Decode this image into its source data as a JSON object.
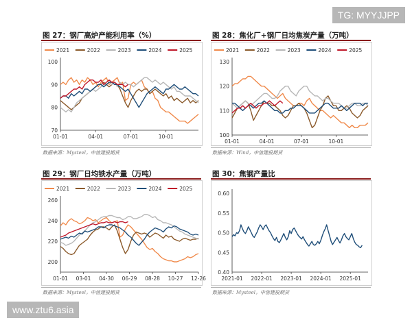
{
  "watermarks": {
    "top": "TG: MYYJJPP",
    "bottom": "www.ztu6.asia"
  },
  "panels": [
    {
      "title": "图 27：钢厂高炉产能利用率（%）",
      "source": "数据来源：Mysteel，中信建投期货"
    },
    {
      "title": "图 28：焦化厂+钢厂日均焦炭产量（万吨）",
      "source": "数据来源：Wind，中信建投期货"
    },
    {
      "title": "图 29：钢厂日均铁水产量（万吨）",
      "source": "数据来源：Mysteel，中信建投期货"
    },
    {
      "title": "图 30：焦钢产量比",
      "source": "数据来源：Mysteel，中信建投期货"
    }
  ],
  "colors": {
    "2021": "#f08a4b",
    "2022": "#8b5a2b",
    "2023": "#b7b7b7",
    "2024": "#1f4e79",
    "2025": "#c0182a",
    "ratio": "#1f4e79"
  },
  "chart_data": [
    {
      "type": "line",
      "ylim": [
        70,
        100
      ],
      "yticks": [
        70,
        80,
        90,
        100
      ],
      "xticks": [
        "01-01",
        "04-01",
        "07-01",
        "10-01"
      ],
      "xtick_pos": [
        0,
        13,
        26,
        39
      ],
      "npts": 52,
      "legend_placement": "top",
      "series": [
        {
          "name": "2021",
          "values": [
            90,
            91,
            90,
            92,
            93,
            91,
            92,
            90,
            92,
            91,
            93,
            92,
            90,
            91,
            89,
            91,
            92,
            93,
            90,
            91,
            92,
            93,
            90,
            91,
            83,
            84,
            90,
            91,
            90,
            91,
            92,
            89,
            88,
            86,
            87,
            84,
            83,
            80,
            79,
            78,
            78,
            77,
            76,
            75,
            74,
            74,
            74,
            73,
            74,
            75,
            76,
            77
          ]
        },
        {
          "name": "2022",
          "values": [
            83,
            82,
            81,
            80,
            79,
            80,
            81,
            82,
            84,
            85,
            86,
            87,
            88,
            89,
            90,
            90,
            91,
            90,
            89,
            90,
            91,
            90,
            88,
            85,
            82,
            80,
            83,
            85,
            87,
            88,
            87,
            88,
            88,
            86,
            87,
            88,
            87,
            86,
            85,
            86,
            84,
            85,
            83,
            84,
            83,
            82,
            83,
            84,
            82,
            83,
            82,
            83
          ]
        },
        {
          "name": "2023",
          "values": [
            80,
            79,
            78,
            79,
            78,
            80,
            82,
            83,
            84,
            85,
            86,
            87,
            88,
            87,
            88,
            89,
            90,
            90,
            91,
            90,
            91,
            89,
            91,
            90,
            91,
            90,
            90,
            89,
            90,
            91,
            92,
            93,
            93,
            92,
            91,
            92,
            91,
            90,
            91,
            90,
            89,
            88,
            89,
            87,
            87,
            86,
            85,
            85,
            85,
            84,
            83,
            82
          ]
        },
        {
          "name": "2024",
          "values": [
            84,
            85,
            85,
            84,
            86,
            85,
            86,
            87,
            86,
            88,
            88,
            87,
            88,
            89,
            90,
            90,
            89,
            90,
            91,
            91,
            90,
            90,
            89,
            88,
            87,
            88,
            86,
            84,
            82,
            80,
            82,
            84,
            86,
            87,
            88,
            89,
            88,
            87,
            86,
            88,
            88,
            89,
            90,
            89,
            88,
            88,
            89,
            88,
            87,
            86,
            86,
            85
          ]
        },
        {
          "name": "2025",
          "values": [
            84,
            85,
            85,
            86,
            87,
            88,
            88,
            89,
            88,
            90,
            91,
            92,
            92,
            91,
            91,
            92,
            90,
            91,
            92,
            91,
            91,
            90,
            90,
            90,
            89,
            90
          ]
        }
      ]
    },
    {
      "type": "line",
      "ylim": [
        100,
        130
      ],
      "yticks": [
        100,
        110,
        120,
        130
      ],
      "xticks": [
        "01-01",
        "04-01",
        "07-01",
        "10-01"
      ],
      "xtick_pos": [
        0,
        13,
        26,
        39
      ],
      "npts": 52,
      "legend_placement": "top",
      "series": [
        {
          "name": "2021",
          "values": [
            120,
            121,
            121,
            122,
            123,
            123,
            124,
            124,
            123,
            122,
            121,
            120,
            120,
            119,
            118,
            117,
            116,
            115,
            116,
            117,
            115,
            114,
            113,
            112,
            112,
            113,
            113,
            112,
            114,
            115,
            113,
            112,
            111,
            110,
            110,
            109,
            108,
            107,
            108,
            107,
            106,
            105,
            105,
            104,
            103,
            104,
            103,
            103,
            104,
            104,
            104,
            105
          ]
        },
        {
          "name": "2022",
          "values": [
            107,
            109,
            111,
            112,
            113,
            114,
            113,
            110,
            106,
            108,
            110,
            112,
            114,
            113,
            113,
            112,
            112,
            111,
            110,
            108,
            107,
            108,
            110,
            112,
            112,
            113,
            112,
            111,
            109,
            106,
            103,
            104,
            107,
            110,
            112,
            115,
            116,
            114,
            112,
            112,
            110,
            110,
            111,
            112,
            111,
            109,
            108,
            107,
            108,
            110,
            111,
            112
          ]
        },
        {
          "name": "2023",
          "values": [
            113,
            112,
            111,
            112,
            113,
            114,
            113,
            112,
            113,
            114,
            115,
            116,
            117,
            117,
            116,
            115,
            115,
            116,
            118,
            119,
            120,
            120,
            118,
            117,
            116,
            118,
            119,
            120,
            120,
            118,
            117,
            116,
            116,
            115,
            114,
            115,
            115,
            114,
            113,
            113,
            113,
            112,
            111,
            111,
            112,
            113,
            113,
            112,
            112,
            113,
            113,
            112
          ]
        },
        {
          "name": "2024",
          "values": [
            113,
            113,
            112,
            111,
            110,
            111,
            112,
            112,
            111,
            112,
            113,
            113,
            114,
            113,
            112,
            111,
            110,
            110,
            109,
            109,
            110,
            110,
            111,
            111,
            112,
            112,
            112,
            111,
            110,
            109,
            109,
            109,
            110,
            111,
            112,
            113,
            113,
            112,
            111,
            111,
            111,
            112,
            111,
            110,
            111,
            112,
            113,
            113,
            113,
            112,
            113,
            113
          ]
        },
        {
          "name": "2025",
          "values": [
            109,
            110,
            111,
            111,
            112,
            111,
            112,
            113,
            112,
            111,
            112,
            112,
            113,
            113,
            114,
            113,
            112,
            113,
            114,
            113
          ]
        }
      ]
    },
    {
      "type": "line",
      "ylim": [
        190,
        260
      ],
      "yticks": [
        200,
        220,
        240,
        260
      ],
      "xticks": [
        "01-01",
        "03-01",
        "04-30",
        "06-29",
        "08-28",
        "10-27",
        "12-26"
      ],
      "xtick_pos": [
        0,
        8.5,
        17,
        25.5,
        34,
        42.5,
        51
      ],
      "npts": 52,
      "legend_placement": "top",
      "series": [
        {
          "name": "2021",
          "values": [
            235,
            238,
            236,
            240,
            242,
            240,
            239,
            237,
            238,
            240,
            243,
            242,
            240,
            241,
            238,
            240,
            242,
            243,
            240,
            238,
            239,
            240,
            224,
            226,
            232,
            236,
            234,
            231,
            228,
            225,
            222,
            218,
            214,
            212,
            213,
            210,
            208,
            205,
            203,
            202,
            201,
            201,
            200,
            200,
            201,
            202,
            203,
            205,
            204,
            205,
            207,
            208
          ]
        },
        {
          "name": "2022",
          "values": [
            215,
            213,
            210,
            208,
            207,
            208,
            212,
            216,
            218,
            220,
            222,
            226,
            229,
            231,
            232,
            234,
            234,
            233,
            231,
            234,
            236,
            230,
            222,
            214,
            208,
            212,
            220,
            226,
            229,
            228,
            227,
            228,
            227,
            224,
            226,
            228,
            227,
            225,
            223,
            226,
            224,
            225,
            222,
            221,
            220,
            222,
            223,
            222,
            221,
            222,
            222,
            223
          ]
        },
        {
          "name": "2023",
          "values": [
            219,
            218,
            216,
            217,
            218,
            220,
            223,
            226,
            228,
            230,
            233,
            236,
            238,
            239,
            241,
            243,
            244,
            244,
            245,
            245,
            244,
            243,
            243,
            241,
            242,
            244,
            244,
            242,
            242,
            243,
            244,
            246,
            246,
            245,
            243,
            244,
            241,
            240,
            238,
            238,
            237,
            236,
            234,
            232,
            230,
            229,
            227,
            226,
            225,
            224,
            223,
            222
          ]
        },
        {
          "name": "2024",
          "values": [
            222,
            223,
            224,
            223,
            225,
            224,
            226,
            228,
            227,
            230,
            229,
            230,
            231,
            232,
            234,
            234,
            233,
            235,
            236,
            236,
            235,
            234,
            233,
            231,
            229,
            226,
            224,
            221,
            218,
            216,
            219,
            222,
            226,
            229,
            231,
            233,
            232,
            231,
            229,
            232,
            234,
            233,
            235,
            234,
            232,
            231,
            230,
            229,
            227,
            226,
            227,
            226
          ]
        },
        {
          "name": "2025",
          "values": [
            224,
            225,
            226,
            228,
            229,
            230,
            231,
            232,
            233,
            234,
            235,
            236,
            237,
            236,
            237,
            238,
            238,
            239,
            238,
            238,
            239,
            238,
            239,
            239,
            238,
            239
          ]
        }
      ]
    },
    {
      "type": "line",
      "ylim": [
        0.4,
        0.6
      ],
      "yticks": [
        0.4,
        0.45,
        0.5,
        0.55,
        0.6
      ],
      "ytick_labels": [
        "0.40",
        "0.45",
        "0.50",
        "0.55",
        "0.60"
      ],
      "xlim": [
        2021.0,
        2025.6
      ],
      "xticks": [
        "2021-01",
        "2022-01",
        "2023-01",
        "2024-01",
        "2025-01"
      ],
      "xtick_values": [
        2021,
        2022,
        2023,
        2024,
        2025
      ],
      "series": [
        {
          "name": "",
          "x": [
            2021.0,
            2021.05,
            2021.1,
            2021.15,
            2021.2,
            2021.25,
            2021.3,
            2021.35,
            2021.4,
            2021.45,
            2021.5,
            2021.55,
            2021.6,
            2021.65,
            2021.7,
            2021.75,
            2021.8,
            2021.85,
            2021.9,
            2021.95,
            2022.0,
            2022.05,
            2022.1,
            2022.15,
            2022.2,
            2022.25,
            2022.3,
            2022.35,
            2022.4,
            2022.45,
            2022.5,
            2022.55,
            2022.6,
            2022.65,
            2022.7,
            2022.75,
            2022.8,
            2022.85,
            2022.9,
            2022.95,
            2023.0,
            2023.05,
            2023.1,
            2023.15,
            2023.2,
            2023.25,
            2023.3,
            2023.35,
            2023.4,
            2023.45,
            2023.5,
            2023.55,
            2023.6,
            2023.65,
            2023.7,
            2023.75,
            2023.8,
            2023.85,
            2023.9,
            2023.95,
            2024.0,
            2024.05,
            2024.1,
            2024.15,
            2024.2,
            2024.25,
            2024.3,
            2024.35,
            2024.4,
            2024.45,
            2024.5,
            2024.55,
            2024.6,
            2024.65,
            2024.7,
            2024.75,
            2024.8,
            2024.85,
            2024.9,
            2024.95,
            2025.0,
            2025.05,
            2025.1,
            2025.15,
            2025.2,
            2025.25,
            2025.3,
            2025.35,
            2025.4
          ],
          "values": [
            0.49,
            0.495,
            0.492,
            0.5,
            0.498,
            0.505,
            0.52,
            0.51,
            0.502,
            0.498,
            0.505,
            0.515,
            0.508,
            0.5,
            0.492,
            0.488,
            0.495,
            0.502,
            0.512,
            0.52,
            0.515,
            0.508,
            0.516,
            0.52,
            0.512,
            0.505,
            0.5,
            0.492,
            0.485,
            0.48,
            0.488,
            0.478,
            0.475,
            0.482,
            0.49,
            0.498,
            0.488,
            0.482,
            0.49,
            0.505,
            0.498,
            0.508,
            0.512,
            0.505,
            0.498,
            0.492,
            0.488,
            0.484,
            0.49,
            0.482,
            0.476,
            0.47,
            0.466,
            0.472,
            0.478,
            0.47,
            0.468,
            0.472,
            0.478,
            0.472,
            0.48,
            0.492,
            0.502,
            0.51,
            0.52,
            0.505,
            0.492,
            0.478,
            0.47,
            0.476,
            0.482,
            0.488,
            0.48,
            0.474,
            0.482,
            0.492,
            0.498,
            0.49,
            0.485,
            0.482,
            0.49,
            0.498,
            0.485,
            0.476,
            0.47,
            0.468,
            0.464,
            0.462,
            0.468
          ]
        }
      ]
    }
  ]
}
